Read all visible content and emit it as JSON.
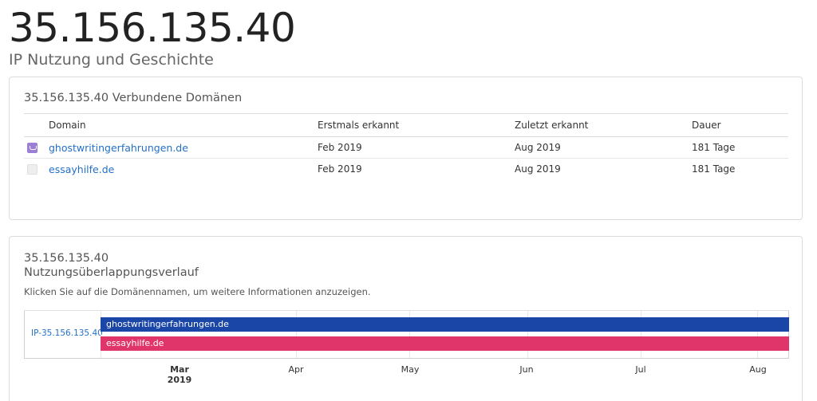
{
  "header": {
    "ip": "35.156.135.40",
    "subtitle": "IP Nutzung und Geschichte"
  },
  "domains_card": {
    "title": "35.156.135.40 Verbundene Domänen",
    "columns": [
      "Domain",
      "Erstmals erkannt",
      "Zuletzt erkannt",
      "Dauer"
    ],
    "rows": [
      {
        "icon": "purple-favicon-icon",
        "domain": "ghostwritingerfahrungen.de",
        "first": "Feb 2019",
        "last": "Aug 2019",
        "duration": "181 Tage"
      },
      {
        "icon": "light-favicon-icon",
        "domain": "essayhilfe.de",
        "first": "Feb 2019",
        "last": "Aug 2019",
        "duration": "181 Tage"
      }
    ]
  },
  "history_card": {
    "title_line1": "35.156.135.40",
    "title_line2": "Nutzungsüberlappungsverlauf",
    "hint": "Klicken Sie auf die Domänennamen, um weitere Informationen anzuzeigen.",
    "timeline": {
      "row_label": "IP-35.156.135.40",
      "bars": [
        {
          "label": "ghostwritingerfahrungen.de",
          "color": "#1a46a8",
          "start": "Feb 2019",
          "end": "Aug 2019"
        },
        {
          "label": "essayhilfe.de",
          "color": "#e0356a",
          "start": "Feb 2019",
          "end": "Aug 2019"
        }
      ],
      "axis": [
        {
          "month": "Mar",
          "year": "2019"
        },
        {
          "month": "Apr"
        },
        {
          "month": "May"
        },
        {
          "month": "Jun"
        },
        {
          "month": "Jul"
        },
        {
          "month": "Aug"
        }
      ]
    }
  },
  "colors": {
    "link": "#2470c7",
    "bar1": "#1a46a8",
    "bar2": "#e0356a"
  }
}
